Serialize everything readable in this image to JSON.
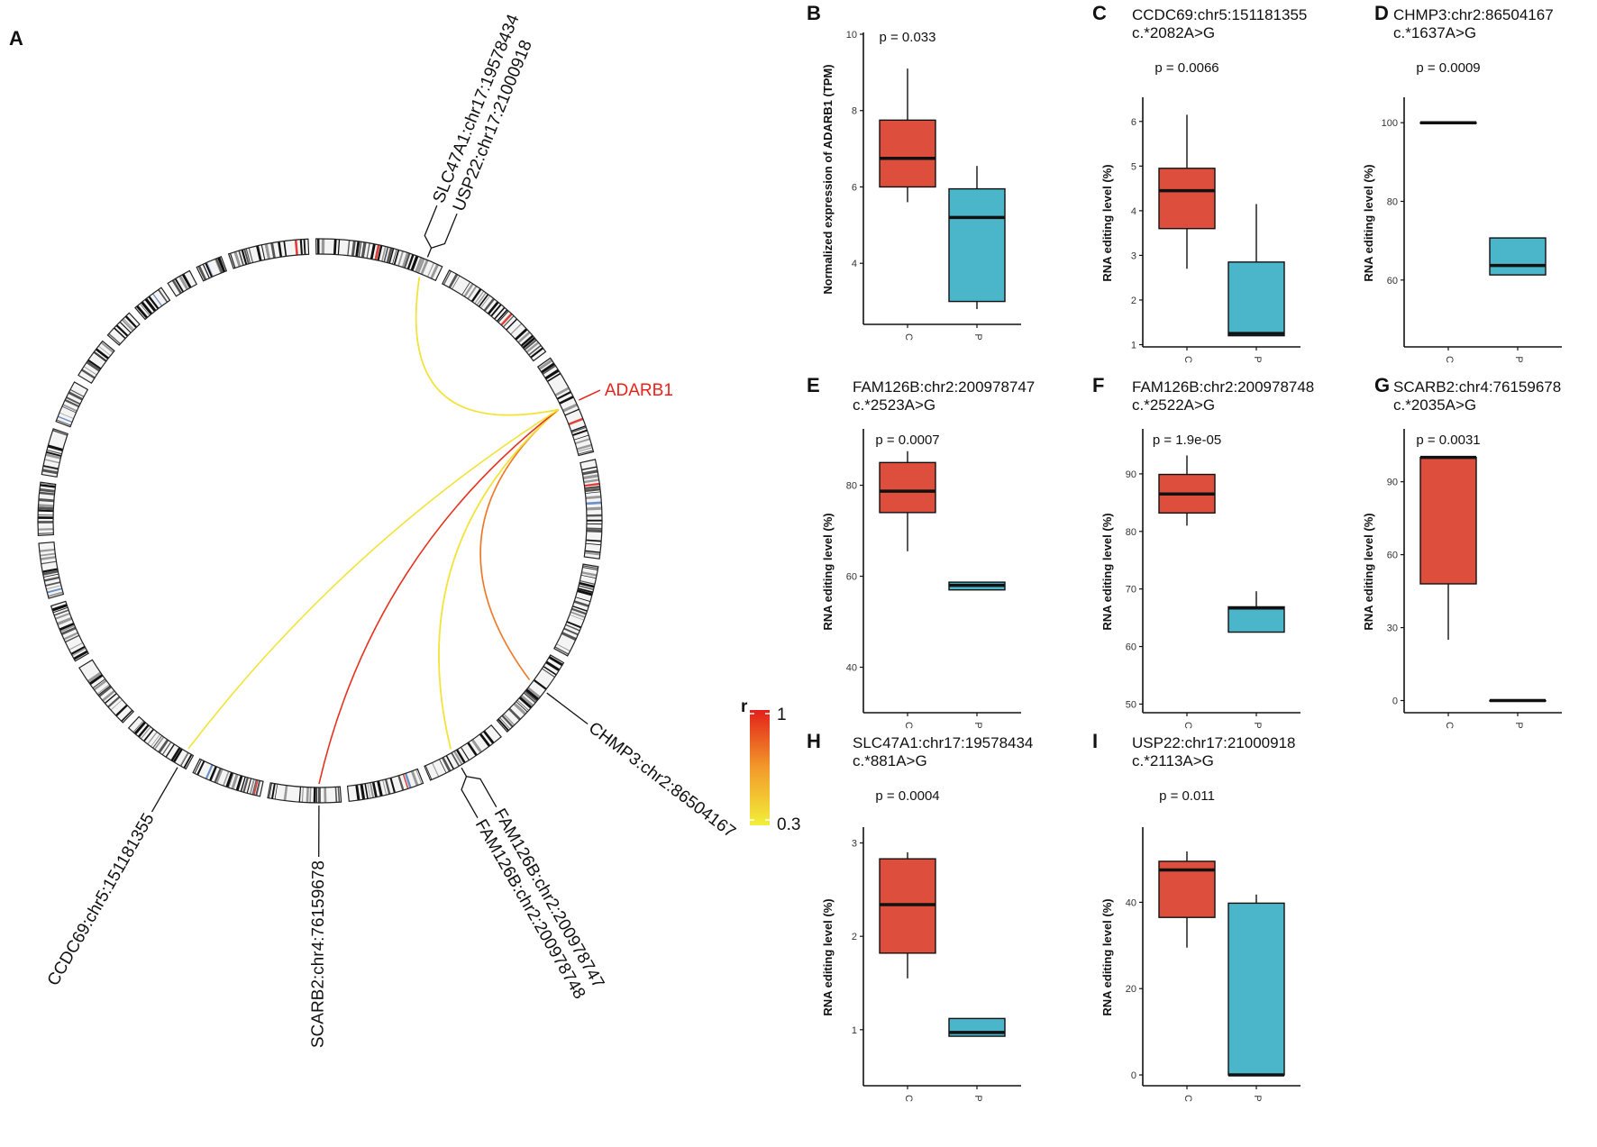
{
  "panel_letters": {
    "a": "A"
  },
  "circos": {
    "hub_label": "ADARB1",
    "hub_color": "#e8221b",
    "legend": {
      "title": "r",
      "max_label": "1",
      "min_label": "0.3",
      "low_color": "#f2ef3a",
      "high_color": "#e3201b"
    },
    "sites": [
      {
        "label": "SLC47A1:chr17:19578434",
        "r": 0.35
      },
      {
        "label": "USP22:chr17:21000918",
        "r": 0.35
      },
      {
        "label": "CHMP3:chr2:86504167",
        "r": 0.75
      },
      {
        "label": "FAM126B:chr2:200978747",
        "r": 0.35
      },
      {
        "label": "FAM126B:chr2:200978748",
        "r": 0.35
      },
      {
        "label": "SCARB2:chr4:76159678",
        "r": 0.95
      },
      {
        "label": "CCDC69:chr5:151181355",
        "r": 0.35
      }
    ]
  },
  "colors": {
    "case": "#dd4e3d",
    "control": "#4bb5c9"
  },
  "chart_data": [
    {
      "panel": "B",
      "type": "box",
      "title_lines": [],
      "p_label": "p = 0.033",
      "ylabel": "Normalized expression of ADARB1 (TPM)",
      "categories": [
        "C",
        "P"
      ],
      "ylim": [
        2.4,
        10.0
      ],
      "yticks": [
        4,
        6,
        8,
        10
      ],
      "boxes": [
        {
          "q1": 6.0,
          "median": 6.75,
          "q3": 7.75,
          "whisker_low": 5.6,
          "whisker_high": 9.1
        },
        {
          "q1": 3.0,
          "median": 5.2,
          "q3": 5.95,
          "whisker_low": 2.8,
          "whisker_high": 6.55
        }
      ]
    },
    {
      "panel": "C",
      "type": "box",
      "title_lines": [
        "CCDC69:chr5:151181355",
        "c.*2082A>G"
      ],
      "p_label": "p = 0.0066",
      "ylabel": "RNA editing level (%)",
      "categories": [
        "C",
        "P"
      ],
      "ylim": [
        0.95,
        6.5
      ],
      "yticks": [
        1,
        2,
        3,
        4,
        5,
        6
      ],
      "boxes": [
        {
          "q1": 3.6,
          "median": 4.45,
          "q3": 4.95,
          "whisker_low": 2.7,
          "whisker_high": 6.15
        },
        {
          "q1": 1.2,
          "median": 1.25,
          "q3": 2.85,
          "whisker_low": 1.2,
          "whisker_high": 4.15
        }
      ]
    },
    {
      "panel": "D",
      "type": "box",
      "title_lines": [
        "CHMP3:chr2:86504167",
        "c.*1637A>G"
      ],
      "p_label": "p = 0.0009",
      "ylabel": "RNA editing level (%)",
      "categories": [
        "C",
        "P"
      ],
      "ylim": [
        43,
        106
      ],
      "yticks": [
        60,
        80,
        100
      ],
      "boxes": [
        {
          "q1": 100,
          "median": 100,
          "q3": 100,
          "whisker_low": 100,
          "whisker_high": 100
        },
        {
          "q1": 61.3,
          "median": 63.7,
          "q3": 70.7,
          "whisker_low": 61.3,
          "whisker_high": 70.7
        }
      ]
    },
    {
      "panel": "E",
      "type": "box",
      "title_lines": [
        "FAM126B:chr2:200978747",
        "c.*2523A>G"
      ],
      "p_label": "p = 0.0007",
      "ylabel": "RNA editing level (%)",
      "categories": [
        "C",
        "P"
      ],
      "ylim": [
        30,
        92
      ],
      "yticks": [
        40,
        60,
        80
      ],
      "boxes": [
        {
          "q1": 74,
          "median": 78.7,
          "q3": 85,
          "whisker_low": 65.5,
          "whisker_high": 87.5
        },
        {
          "q1": 57,
          "median": 58,
          "q3": 58.7,
          "whisker_low": 57,
          "whisker_high": 58.7
        }
      ]
    },
    {
      "panel": "F",
      "type": "box",
      "title_lines": [
        "FAM126B:chr2:200978748",
        "c.*2522A>G"
      ],
      "p_label": "p = 1.9e-05",
      "ylabel": "RNA editing level (%)",
      "categories": [
        "C",
        "P"
      ],
      "ylim": [
        48.5,
        97.5
      ],
      "yticks": [
        50,
        60,
        70,
        80,
        90
      ],
      "boxes": [
        {
          "q1": 83.2,
          "median": 86.5,
          "q3": 89.9,
          "whisker_low": 81,
          "whisker_high": 93.2
        },
        {
          "q1": 62.5,
          "median": 66.7,
          "q3": 66.9,
          "whisker_low": 62.5,
          "whisker_high": 69.6
        }
      ]
    },
    {
      "panel": "G",
      "type": "box",
      "title_lines": [
        "SCARB2:chr4:76159678",
        "c.*2035A>G"
      ],
      "p_label": "p = 0.0031",
      "ylabel": "RNA editing level (%)",
      "categories": [
        "C",
        "P"
      ],
      "ylim": [
        -5,
        111
      ],
      "yticks": [
        0,
        30,
        60,
        90
      ],
      "boxes": [
        {
          "q1": 48,
          "median": 100,
          "q3": 100,
          "whisker_low": 25,
          "whisker_high": 100
        },
        {
          "q1": 0,
          "median": 0,
          "q3": 0,
          "whisker_low": 0,
          "whisker_high": 0
        }
      ]
    },
    {
      "panel": "H",
      "type": "box",
      "title_lines": [
        "SLC47A1:chr17:19578434",
        "c.*881A>G"
      ],
      "p_label": "p = 0.0004",
      "ylabel": "RNA editing level (%)",
      "categories": [
        "C",
        "P"
      ],
      "ylim": [
        0.4,
        3.15
      ],
      "yticks": [
        1,
        2,
        3
      ],
      "boxes": [
        {
          "q1": 1.82,
          "median": 2.34,
          "q3": 2.83,
          "whisker_low": 1.55,
          "whisker_high": 2.9
        },
        {
          "q1": 0.93,
          "median": 0.97,
          "q3": 1.12,
          "whisker_low": 0.93,
          "whisker_high": 1.12
        }
      ]
    },
    {
      "panel": "I",
      "type": "box",
      "title_lines": [
        "USP22:chr17:21000918",
        "c.*2113A>G"
      ],
      "p_label": "p = 0.011",
      "ylabel": "RNA editing level (%)",
      "categories": [
        "C",
        "P"
      ],
      "ylim": [
        -2.5,
        57
      ],
      "yticks": [
        0,
        20,
        40
      ],
      "boxes": [
        {
          "q1": 36.5,
          "median": 47.5,
          "q3": 49.5,
          "whisker_low": 29.5,
          "whisker_high": 51.8
        },
        {
          "q1": 0,
          "median": 0,
          "q3": 39.8,
          "whisker_low": 0,
          "whisker_high": 41.8
        }
      ]
    }
  ]
}
